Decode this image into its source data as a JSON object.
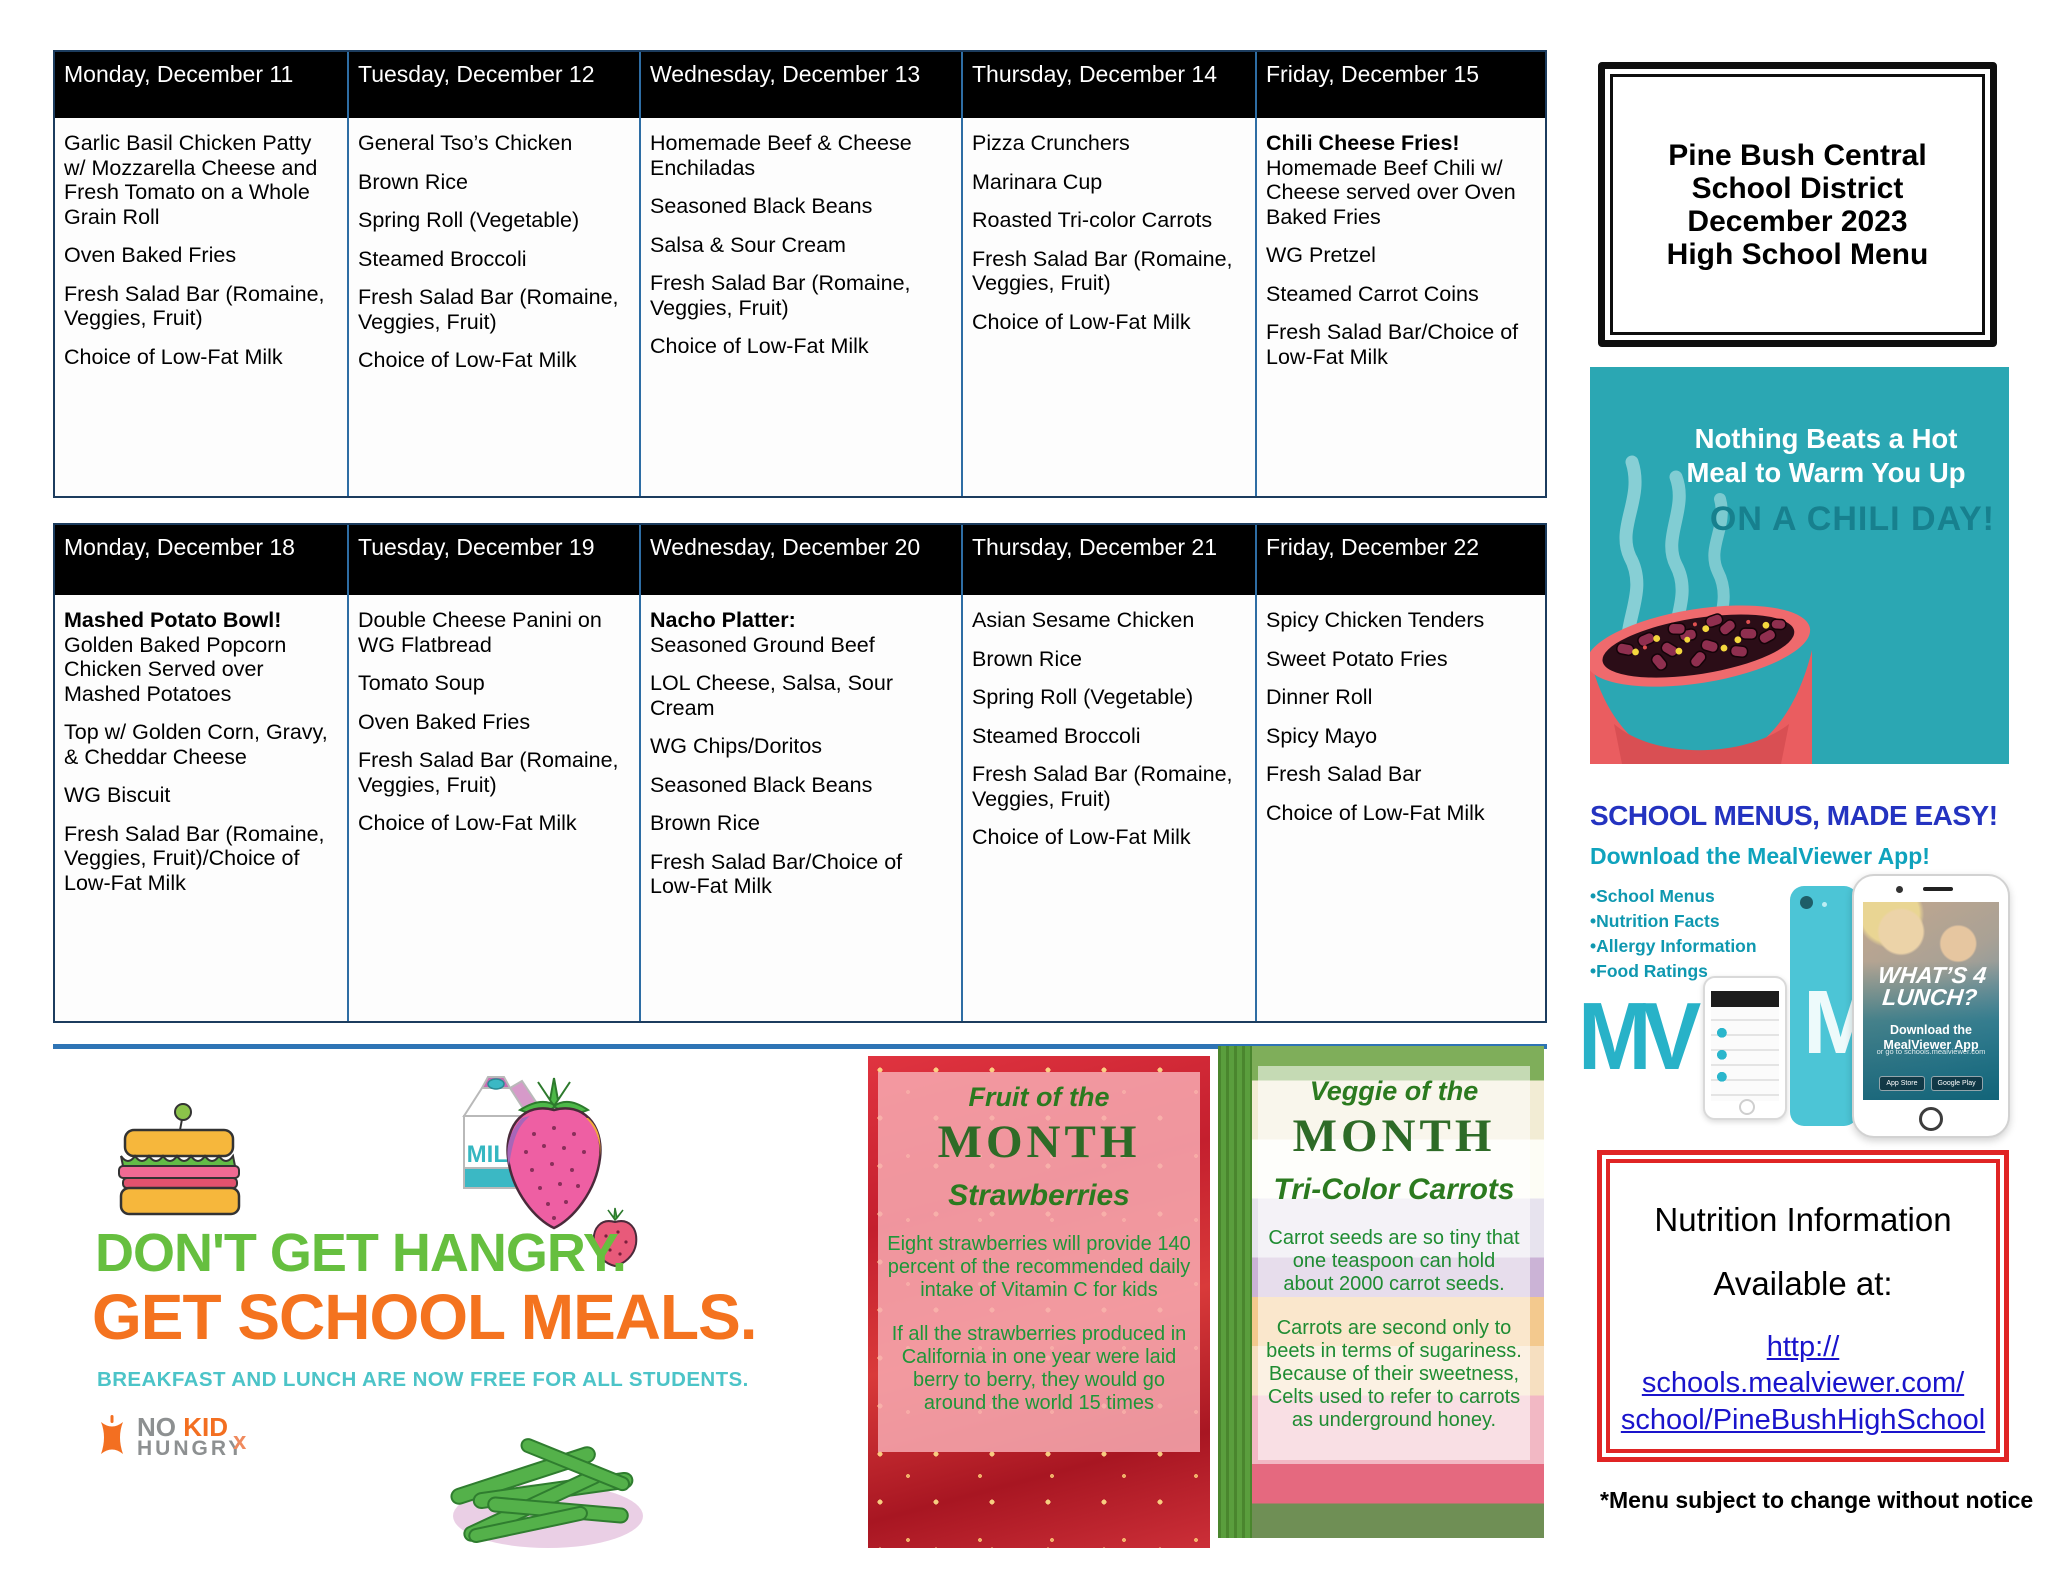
{
  "colors": {
    "header_bg": "#000000",
    "table_border_blue": "#2e6da4",
    "separator_blue": "#2e74b5",
    "banner_teal": "#2ba7b3",
    "banner_dark_teal": "#17808e",
    "bowl_red": "#ef6a6d",
    "promo_green": "#66bf3f",
    "promo_orange": "#f4731f",
    "promo_teal": "#4cc4c8",
    "mealviewer_blue": "#2433c0",
    "mealviewer_teal": "#0fa3bd",
    "mv_logo_teal": "#28b2c8",
    "nutrition_border_red": "#e02424",
    "link_blue": "#1a14cc",
    "panel_green": "#2b7a1f"
  },
  "title_box": {
    "lines": [
      "Pine Bush Central",
      "School District",
      "December 2023",
      "High School Menu"
    ]
  },
  "menu": {
    "weeks": [
      {
        "days": [
          {
            "header": "Monday, December 11",
            "items": [
              {
                "text": "Garlic Basil Chicken Patty w/ Mozzarella Cheese and Fresh Tomato on a Whole Grain Roll"
              },
              {
                "text": "Oven Baked Fries"
              },
              {
                "text": "Fresh Salad Bar (Romaine, Veggies, Fruit)"
              },
              {
                "text": "Choice of Low-Fat Milk"
              }
            ]
          },
          {
            "header": "Tuesday, December 12",
            "items": [
              {
                "text": "General Tso’s Chicken"
              },
              {
                "text": "Brown Rice"
              },
              {
                "text": "Spring Roll (Vegetable)"
              },
              {
                "text": "Steamed Broccoli"
              },
              {
                "text": "Fresh Salad Bar (Romaine, Veggies, Fruit)"
              },
              {
                "text": "Choice of Low-Fat Milk"
              }
            ]
          },
          {
            "header": "Wednesday, December 13",
            "items": [
              {
                "text": "Homemade Beef & Cheese Enchiladas"
              },
              {
                "text": "Seasoned Black Beans"
              },
              {
                "text": "Salsa & Sour Cream"
              },
              {
                "text": "Fresh Salad Bar (Romaine, Veggies, Fruit)"
              },
              {
                "text": "Choice of Low-Fat Milk"
              }
            ]
          },
          {
            "header": "Thursday, December 14",
            "items": [
              {
                "text": "Pizza Crunchers"
              },
              {
                "text": "Marinara Cup"
              },
              {
                "text": "Roasted Tri-color Carrots"
              },
              {
                "text": "Fresh Salad Bar (Romaine, Veggies, Fruit)"
              },
              {
                "text": "Choice of Low-Fat Milk"
              }
            ]
          },
          {
            "header": "Friday, December 15",
            "items": [
              {
                "lead": "Chili Cheese Fries!",
                "text": "Homemade Beef Chili w/ Cheese served over Oven Baked Fries"
              },
              {
                "text": "WG Pretzel"
              },
              {
                "text": "Steamed Carrot Coins"
              },
              {
                "text": "Fresh Salad Bar/Choice of Low-Fat Milk"
              }
            ]
          }
        ]
      },
      {
        "days": [
          {
            "header": "Monday, December 18",
            "items": [
              {
                "lead": "Mashed Potato Bowl!",
                "text": "Golden Baked Popcorn Chicken Served over Mashed Potatoes"
              },
              {
                "text": "Top w/ Golden Corn, Gravy, & Cheddar Cheese"
              },
              {
                "text": "WG Biscuit"
              },
              {
                "text": "Fresh Salad Bar (Romaine, Veggies, Fruit)/Choice of Low-Fat Milk"
              }
            ]
          },
          {
            "header": "Tuesday, December 19",
            "items": [
              {
                "text": "Double Cheese Panini on WG Flatbread"
              },
              {
                "text": "Tomato Soup"
              },
              {
                "text": "Oven Baked Fries"
              },
              {
                "text": "Fresh Salad Bar (Romaine, Veggies, Fruit)"
              },
              {
                "text": "Choice of Low-Fat Milk"
              }
            ]
          },
          {
            "header": "Wednesday, December 20",
            "items": [
              {
                "lead": "Nacho Platter:",
                "text": "Seasoned Ground Beef"
              },
              {
                "text": "LOL Cheese, Salsa, Sour Cream"
              },
              {
                "text": "WG Chips/Doritos"
              },
              {
                "text": "Seasoned Black Beans"
              },
              {
                "text": "Brown Rice"
              },
              {
                "text": "Fresh Salad Bar/Choice of Low-Fat Milk"
              }
            ]
          },
          {
            "header": "Thursday, December 21",
            "items": [
              {
                "text": "Asian Sesame Chicken"
              },
              {
                "text": "Brown Rice"
              },
              {
                "text": "Spring Roll (Vegetable)"
              },
              {
                "text": "Steamed Broccoli"
              },
              {
                "text": "Fresh Salad Bar (Romaine, Veggies, Fruit)"
              },
              {
                "text": "Choice of Low-Fat Milk"
              }
            ]
          },
          {
            "header": "Friday, December 22",
            "items": [
              {
                "text": "Spicy Chicken Tenders"
              },
              {
                "text": "Sweet Potato Fries"
              },
              {
                "text": "Dinner Roll"
              },
              {
                "text": "Spicy Mayo"
              },
              {
                "text": "Fresh Salad Bar"
              },
              {
                "text": "Choice of Low-Fat Milk"
              }
            ]
          }
        ]
      }
    ]
  },
  "chili_banner": {
    "line1": "Nothing Beats a Hot",
    "line2": "Meal to Warm You Up",
    "line3": "ON A CHILI DAY!"
  },
  "mealviewer": {
    "heading": "SCHOOL MENUS, MADE EASY!",
    "subheading": "Download the MealViewer App!",
    "bullets": [
      "School Menus",
      "Nutrition Facts",
      "Allergy Information",
      "Food Ratings"
    ],
    "logo": "MV",
    "case_letter": "M",
    "phone": {
      "line1": "WHAT’S 4",
      "line2": "LUNCH?",
      "download1": "Download the",
      "download2": "MealViewer App",
      "url": "or go to schools.mealviewer.com",
      "badge1": "App Store",
      "badge2": "Google Play"
    }
  },
  "nutrition_box": {
    "line1": "Nutrition Information",
    "line2": "Available at:",
    "link_lines": [
      "http://",
      "schools.mealviewer.com/",
      "school/PineBushHighSchool"
    ]
  },
  "footnote": "*Menu subject to change without notice",
  "promo": {
    "line1": "DON'T GET HANGRY.",
    "line2": "GET SCHOOL MEALS.",
    "line3": "BREAKFAST AND LUNCH ARE NOW FREE FOR ALL STUDENTS.",
    "milk_label": "MILK",
    "logo": {
      "no": "NO",
      "kid": "KID",
      "hungry": "HUNGRY",
      "x": "x"
    }
  },
  "fruit_of_month": {
    "kicker": "Fruit of the",
    "title": "MONTH",
    "subtitle": "Strawberries",
    "para1": "Eight strawberries will provide 140 percent of the recommended daily intake of Vitamin C for kids",
    "para2": "If all the strawberries produced in California in one year were laid berry to berry, they would go around the world 15 times"
  },
  "veggie_of_month": {
    "kicker": "Veggie of the",
    "title": "MONTH",
    "subtitle": "Tri-Color Carrots",
    "para1": "Carrot seeds are so tiny that one teaspoon can hold about 2000 carrot seeds.",
    "para2": "Carrots are second only to beets in terms of sugariness. Because of their sweetness, Celts used to refer to carrots as underground honey."
  }
}
